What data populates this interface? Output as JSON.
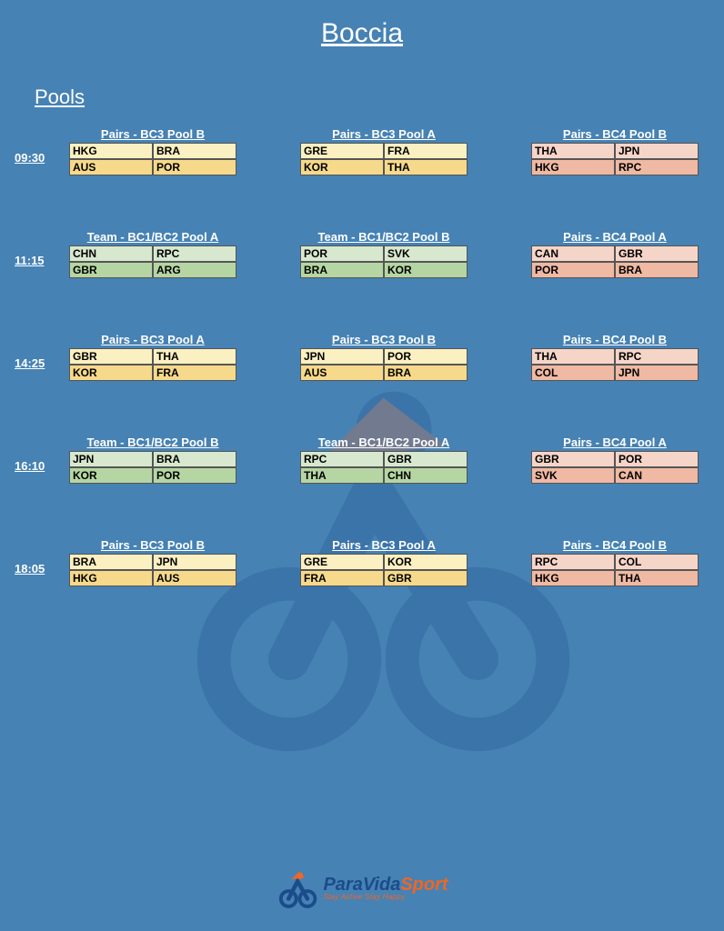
{
  "title": "Boccia",
  "section": "Pools",
  "colors": {
    "yellow_light": "#fbf0c1",
    "yellow_dark": "#f6d98a",
    "green_light": "#d7e8cf",
    "green_dark": "#b5d6a3",
    "pink_light": "#f6d5c9",
    "pink_dark": "#efb9a3"
  },
  "rows": [
    {
      "time": "09:30",
      "blocks": [
        {
          "title": "Pairs - BC3 Pool B",
          "scheme": "yellow",
          "matches": [
            [
              "HKG",
              "BRA"
            ],
            [
              "AUS",
              "POR"
            ]
          ]
        },
        {
          "title": "Pairs - BC3 Pool A",
          "scheme": "yellow",
          "matches": [
            [
              "GRE",
              "FRA"
            ],
            [
              "KOR",
              "THA"
            ]
          ]
        },
        {
          "title": "Pairs - BC4 Pool B",
          "scheme": "pink",
          "matches": [
            [
              "THA",
              "JPN"
            ],
            [
              "HKG",
              "RPC"
            ]
          ]
        }
      ]
    },
    {
      "time": "11:15",
      "blocks": [
        {
          "title": "Team - BC1/BC2 Pool A",
          "scheme": "green",
          "matches": [
            [
              "CHN",
              "RPC"
            ],
            [
              "GBR",
              "ARG"
            ]
          ]
        },
        {
          "title": "Team - BC1/BC2 Pool B",
          "scheme": "green",
          "matches": [
            [
              "POR",
              "SVK"
            ],
            [
              "BRA",
              "KOR"
            ]
          ]
        },
        {
          "title": "Pairs - BC4 Pool A",
          "scheme": "pink",
          "matches": [
            [
              "CAN",
              "GBR"
            ],
            [
              "POR",
              "BRA"
            ]
          ]
        }
      ]
    },
    {
      "time": "14:25",
      "blocks": [
        {
          "title": "Pairs - BC3 Pool A",
          "scheme": "yellow",
          "matches": [
            [
              "GBR",
              "THA"
            ],
            [
              "KOR",
              "FRA"
            ]
          ]
        },
        {
          "title": "Pairs - BC3 Pool B",
          "scheme": "yellow",
          "matches": [
            [
              "JPN",
              "POR"
            ],
            [
              "AUS",
              "BRA"
            ]
          ]
        },
        {
          "title": "Pairs - BC4 Pool B",
          "scheme": "pink",
          "matches": [
            [
              "THA",
              "RPC"
            ],
            [
              "COL",
              "JPN"
            ]
          ]
        }
      ]
    },
    {
      "time": "16:10",
      "blocks": [
        {
          "title": "Team - BC1/BC2 Pool B",
          "scheme": "green",
          "matches": [
            [
              "JPN",
              "BRA"
            ],
            [
              "KOR",
              "POR"
            ]
          ]
        },
        {
          "title": "Team - BC1/BC2 Pool A",
          "scheme": "green",
          "matches": [
            [
              "RPC",
              "GBR"
            ],
            [
              "THA",
              "CHN"
            ]
          ]
        },
        {
          "title": "Pairs - BC4 Pool A",
          "scheme": "pink",
          "matches": [
            [
              "GBR",
              "POR"
            ],
            [
              "SVK",
              "CAN"
            ]
          ]
        }
      ]
    },
    {
      "time": "18:05",
      "blocks": [
        {
          "title": "Pairs - BC3 Pool B",
          "scheme": "yellow",
          "matches": [
            [
              "BRA",
              "JPN"
            ],
            [
              "HKG",
              "AUS"
            ]
          ]
        },
        {
          "title": "Pairs - BC3 Pool A",
          "scheme": "yellow",
          "matches": [
            [
              "GRE",
              "KOR"
            ],
            [
              "FRA",
              "GBR"
            ]
          ]
        },
        {
          "title": "Pairs - BC4 Pool B",
          "scheme": "pink",
          "matches": [
            [
              "RPC",
              "COL"
            ],
            [
              "HKG",
              "THA"
            ]
          ]
        }
      ]
    }
  ],
  "brand": {
    "part1": "ParaVida",
    "part2": "Sport",
    "tagline": "Stay Active Stay Happy"
  }
}
